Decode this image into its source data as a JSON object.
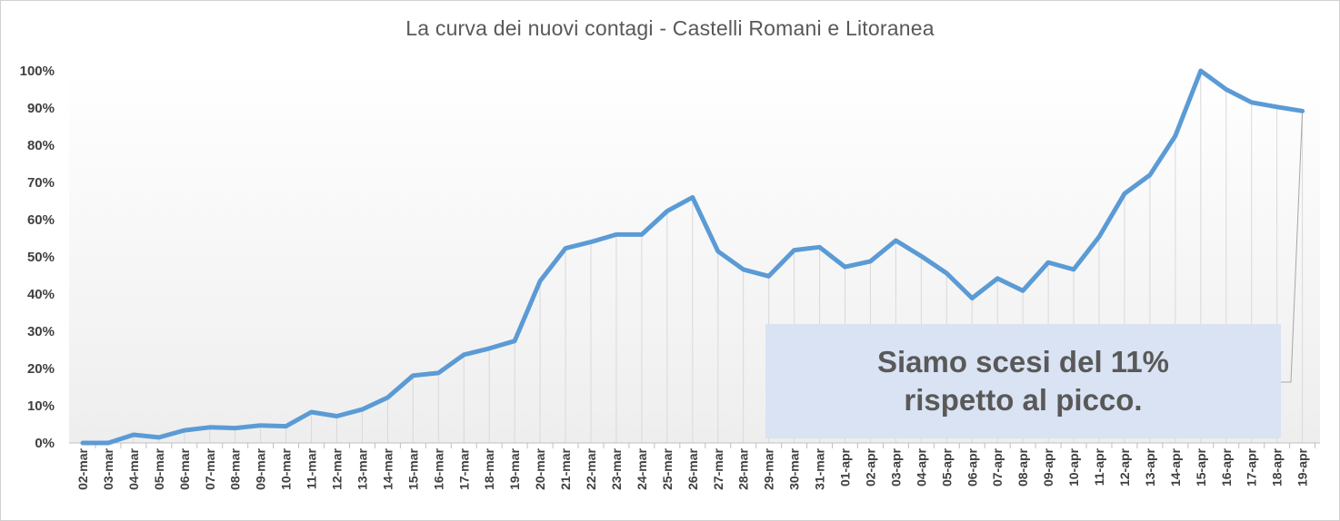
{
  "chart_data": {
    "type": "line",
    "title": "La curva dei nuovi contagi - Castelli  Romani  e Litoranea",
    "xlabel": "",
    "ylabel": "",
    "ylim": [
      0,
      100
    ],
    "y_ticks": [
      "0%",
      "10%",
      "20%",
      "30%",
      "40%",
      "50%",
      "60%",
      "70%",
      "80%",
      "90%",
      "100%"
    ],
    "grid": false,
    "line_color": "#5b9bd5",
    "x": [
      "02-mar",
      "03-mar",
      "04-mar",
      "05-mar",
      "06-mar",
      "07-mar",
      "08-mar",
      "09-mar",
      "10-mar",
      "11-mar",
      "12-mar",
      "13-mar",
      "14-mar",
      "15-mar",
      "16-mar",
      "17-mar",
      "18-mar",
      "19-mar",
      "20-mar",
      "21-mar",
      "22-mar",
      "23-mar",
      "24-mar",
      "25-mar",
      "26-mar",
      "27-mar",
      "28-mar",
      "29-mar",
      "30-mar",
      "31-mar",
      "01-apr",
      "02-apr",
      "03-apr",
      "04-apr",
      "05-apr",
      "06-apr",
      "07-apr",
      "08-apr",
      "09-apr",
      "10-apr",
      "11-apr",
      "12-apr",
      "13-apr",
      "14-apr",
      "15-apr",
      "16-apr",
      "17-apr",
      "18-apr",
      "19-apr"
    ],
    "values": [
      0,
      0,
      2.2,
      1.5,
      3.4,
      4.2,
      4.0,
      4.7,
      4.5,
      8.3,
      7.2,
      9.0,
      12.2,
      18.1,
      18.8,
      23.7,
      25.4,
      27.4,
      43.5,
      52.3,
      54.0,
      56.0,
      56.0,
      62.3,
      66.0,
      51.5,
      46.6,
      44.8,
      51.8,
      52.6,
      47.3,
      48.8,
      54.4,
      50.2,
      45.6,
      38.9,
      44.2,
      40.9,
      48.5,
      46.6,
      55.4,
      67.0,
      72.0,
      82.5,
      100,
      95.0,
      91.5,
      90.3,
      89.2
    ],
    "annotation": {
      "line1": "Siamo scesi del 11%",
      "line2": "rispetto al picco."
    }
  }
}
